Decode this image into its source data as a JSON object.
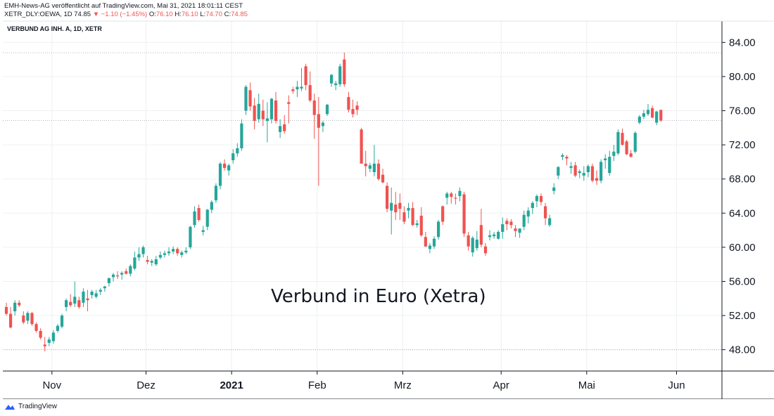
{
  "header": {
    "line1": "EMH-News-AG veröffentlicht auf TradingView.com, Mai 31, 2021 18:01:11 CEST",
    "symbol": "XETR_DLY:OEWA, 1D",
    "last": "74.85",
    "change": "−1.10 (−1.45%)",
    "o_label": "O:",
    "o_value": "76.10",
    "h_label": "H:",
    "h_value": "76.10",
    "l_label": "L:",
    "l_value": "74.70",
    "c_label": "C:",
    "c_value": "74.85"
  },
  "footer": {
    "brand": "TradingView"
  },
  "colors": {
    "up": "#26a69a",
    "down": "#ef5350",
    "grid": "#eef0f3",
    "dots": "#b2b5be"
  },
  "chart_data": {
    "type": "candlestick",
    "title": "VERBUND AG INH. A, 1D, XETR",
    "annotation": "Verbund in Euro (Xetra)",
    "ylim": [
      45.5,
      86.5
    ],
    "y_ticks": [
      "84.00",
      "80.00",
      "76.00",
      "72.00",
      "68.00",
      "64.00",
      "60.00",
      "56.00",
      "52.00",
      "48.00"
    ],
    "x_ticks": [
      {
        "label": "Nov",
        "index": 10,
        "bold": false
      },
      {
        "label": "Dez",
        "index": 32,
        "bold": false
      },
      {
        "label": "2021",
        "index": 52,
        "bold": true
      },
      {
        "label": "Feb",
        "index": 72,
        "bold": false
      },
      {
        "label": "Mrz",
        "index": 92,
        "bold": false
      },
      {
        "label": "Apr",
        "index": 115,
        "bold": false
      },
      {
        "label": "Mai",
        "index": 135,
        "bold": false
      },
      {
        "label": "Jun",
        "index": 156,
        "bold": false
      }
    ],
    "reference_lines": [
      82.8,
      74.85,
      48.0
    ],
    "candles": [
      [
        53.0,
        53.5,
        52.0,
        52.2
      ],
      [
        52.2,
        53.0,
        50.5,
        50.6
      ],
      [
        52.5,
        53.8,
        52.0,
        53.5
      ],
      [
        53.5,
        53.8,
        53.0,
        53.2
      ],
      [
        52.0,
        52.5,
        51.0,
        51.2
      ],
      [
        51.4,
        52.5,
        51.0,
        52.3
      ],
      [
        52.3,
        52.4,
        50.8,
        51.0
      ],
      [
        51.0,
        51.2,
        50.0,
        50.2
      ],
      [
        50.2,
        50.5,
        49.2,
        49.4
      ],
      [
        48.6,
        49.5,
        47.8,
        48.4
      ],
      [
        48.8,
        49.5,
        48.4,
        49.2
      ],
      [
        49.0,
        50.3,
        48.7,
        50.0
      ],
      [
        50.2,
        51.0,
        50.0,
        50.8
      ],
      [
        50.7,
        52.2,
        50.5,
        52.0
      ],
      [
        53.0,
        54.0,
        52.5,
        53.8
      ],
      [
        53.6,
        54.5,
        53.0,
        53.2
      ],
      [
        53.4,
        56.0,
        53.0,
        54.2
      ],
      [
        53.8,
        54.2,
        52.8,
        53.0
      ],
      [
        53.5,
        55.2,
        53.0,
        54.8
      ],
      [
        54.0,
        55.0,
        52.5,
        53.8
      ],
      [
        54.4,
        55.0,
        54.0,
        54.8
      ],
      [
        54.2,
        55.0,
        54.0,
        54.6
      ],
      [
        54.8,
        55.2,
        54.4,
        55.0
      ],
      [
        55.2,
        55.5,
        54.8,
        55.4
      ],
      [
        55.8,
        56.3,
        55.4,
        56.4
      ],
      [
        56.5,
        57.0,
        56.0,
        56.8
      ],
      [
        56.7,
        57.2,
        56.3,
        56.6
      ],
      [
        56.8,
        57.2,
        56.2,
        57.0
      ],
      [
        57.2,
        57.5,
        56.8,
        56.9
      ],
      [
        56.9,
        58.0,
        56.6,
        57.8
      ],
      [
        57.5,
        59.5,
        57.3,
        58.8
      ],
      [
        58.8,
        60.0,
        58.4,
        59.2
      ],
      [
        59.2,
        60.2,
        58.8,
        60.0
      ],
      [
        58.5,
        59.0,
        58.0,
        58.3
      ],
      [
        58.2,
        58.6,
        57.8,
        58.4
      ],
      [
        58.0,
        59.0,
        57.8,
        58.6
      ],
      [
        58.8,
        59.5,
        58.6,
        59.1
      ],
      [
        59.1,
        59.6,
        58.8,
        59.3
      ],
      [
        59.3,
        60.0,
        59.0,
        59.5
      ],
      [
        59.5,
        60.1,
        59.2,
        59.8
      ],
      [
        59.8,
        60.0,
        59.0,
        59.3
      ],
      [
        59.1,
        59.6,
        58.8,
        59.4
      ],
      [
        59.4,
        60.0,
        59.2,
        59.6
      ],
      [
        60.0,
        62.5,
        59.8,
        62.4
      ],
      [
        62.6,
        64.8,
        62.3,
        64.2
      ],
      [
        64.6,
        65.0,
        63.0,
        63.2
      ],
      [
        61.8,
        62.5,
        61.4,
        62.0
      ],
      [
        62.4,
        64.5,
        62.0,
        64.4
      ],
      [
        64.4,
        65.5,
        64.0,
        65.3
      ],
      [
        65.5,
        67.5,
        65.2,
        67.2
      ],
      [
        67.2,
        70.0,
        66.8,
        69.8
      ],
      [
        69.8,
        70.3,
        69.0,
        69.3
      ],
      [
        69.0,
        69.8,
        68.4,
        69.6
      ],
      [
        70.2,
        71.5,
        69.8,
        71.0
      ],
      [
        71.0,
        72.2,
        70.6,
        71.6
      ],
      [
        71.6,
        75.0,
        71.3,
        74.5
      ],
      [
        76.0,
        79.0,
        75.5,
        78.8
      ],
      [
        78.4,
        79.3,
        76.0,
        76.5
      ],
      [
        76.6,
        77.5,
        73.8,
        74.8
      ],
      [
        75.0,
        78.0,
        74.6,
        76.8
      ],
      [
        76.0,
        77.3,
        74.2,
        75.0
      ],
      [
        74.8,
        77.0,
        72.3,
        75.1
      ],
      [
        75.0,
        77.5,
        74.5,
        77.4
      ],
      [
        77.2,
        78.2,
        74.5,
        74.8
      ],
      [
        73.5,
        75.0,
        72.8,
        74.2
      ],
      [
        74.4,
        75.5,
        73.3,
        73.6
      ],
      [
        77.0,
        77.8,
        74.5,
        76.8
      ],
      [
        78.5,
        78.8,
        78.0,
        78.3
      ],
      [
        78.5,
        79.5,
        77.6,
        78.8
      ],
      [
        78.6,
        81.0,
        78.3,
        78.8
      ],
      [
        81.2,
        81.5,
        78.4,
        79.0
      ],
      [
        79.0,
        80.6,
        77.0,
        77.2
      ],
      [
        77.2,
        78.0,
        72.7,
        75.5
      ],
      [
        75.6,
        77.6,
        67.2,
        74.0
      ],
      [
        74.2,
        74.8,
        73.5,
        74.6
      ],
      [
        75.6,
        76.8,
        75.4,
        76.7
      ],
      [
        79.2,
        80.3,
        78.8,
        80.2
      ],
      [
        79.0,
        79.5,
        78.4,
        79.2
      ],
      [
        79.1,
        81.5,
        78.8,
        81.2
      ],
      [
        82.0,
        82.8,
        78.8,
        79.1
      ],
      [
        77.6,
        78.2,
        75.8,
        76.1
      ],
      [
        76.2,
        77.3,
        75.2,
        75.6
      ],
      [
        76.6,
        77.1,
        75.5,
        76.1
      ],
      [
        73.8,
        74.0,
        69.8,
        69.8
      ],
      [
        69.8,
        71.3,
        68.3,
        69.5
      ],
      [
        69.2,
        69.9,
        68.8,
        69.6
      ],
      [
        68.8,
        72.0,
        68.3,
        69.8
      ],
      [
        69.8,
        70.3,
        67.8,
        68.0
      ],
      [
        68.5,
        69.2,
        67.5,
        67.6
      ],
      [
        67.2,
        67.6,
        64.1,
        64.5
      ],
      [
        64.3,
        67.0,
        61.5,
        65.2
      ],
      [
        65.0,
        66.5,
        63.2,
        64.1
      ],
      [
        65.2,
        66.3,
        63.2,
        64.5
      ],
      [
        64.1,
        64.8,
        62.7,
        63.0
      ],
      [
        64.3,
        65.2,
        63.4,
        64.6
      ],
      [
        64.6,
        65.3,
        62.5,
        62.6
      ],
      [
        62.6,
        63.2,
        62.3,
        62.8
      ],
      [
        63.7,
        64.7,
        61.2,
        61.4
      ],
      [
        61.2,
        61.8,
        60.0,
        60.1
      ],
      [
        59.8,
        60.5,
        59.3,
        60.2
      ],
      [
        60.1,
        61.3,
        59.8,
        61.0
      ],
      [
        61.2,
        63.2,
        60.9,
        63.0
      ],
      [
        64.8,
        64.9,
        62.6,
        63.0
      ],
      [
        65.8,
        66.5,
        65.0,
        66.3
      ],
      [
        66.3,
        66.5,
        65.1,
        65.9
      ],
      [
        65.8,
        66.3,
        65.0,
        65.7
      ],
      [
        66.0,
        67.0,
        65.4,
        66.6
      ],
      [
        66.2,
        66.5,
        61.2,
        61.6
      ],
      [
        61.4,
        61.8,
        59.6,
        60.1
      ],
      [
        59.4,
        61.3,
        58.9,
        61.1
      ],
      [
        59.9,
        61.9,
        59.6,
        60.9
      ],
      [
        62.6,
        64.5,
        60.0,
        60.3
      ],
      [
        60.1,
        60.5,
        59.0,
        59.3
      ],
      [
        61.2,
        62.0,
        60.8,
        61.4
      ],
      [
        61.3,
        61.8,
        61.0,
        61.5
      ],
      [
        61.0,
        62.0,
        60.9,
        61.8
      ],
      [
        61.8,
        63.5,
        61.0,
        62.7
      ],
      [
        63.1,
        63.4,
        62.0,
        62.7
      ],
      [
        63.0,
        63.3,
        62.2,
        62.6
      ],
      [
        62.2,
        62.6,
        61.2,
        61.9
      ],
      [
        61.7,
        62.2,
        61.1,
        62.2
      ],
      [
        62.4,
        64.3,
        62.0,
        63.8
      ],
      [
        63.6,
        64.7,
        62.8,
        64.3
      ],
      [
        64.6,
        65.4,
        63.9,
        65.2
      ],
      [
        65.4,
        66.2,
        64.7,
        66.0
      ],
      [
        66.0,
        66.3,
        64.9,
        65.3
      ],
      [
        64.8,
        65.2,
        62.6,
        63.4
      ],
      [
        62.6,
        63.8,
        62.4,
        63.4
      ],
      [
        66.6,
        67.5,
        66.2,
        67.0
      ],
      [
        68.4,
        69.5,
        68.0,
        69.4
      ],
      [
        70.6,
        71.0,
        70.2,
        70.8
      ],
      [
        70.6,
        70.8,
        69.6,
        70.4
      ],
      [
        69.3,
        70.0,
        68.6,
        69.5
      ],
      [
        69.6,
        70.0,
        68.2,
        68.4
      ],
      [
        68.7,
        69.1,
        68.1,
        68.9
      ],
      [
        68.4,
        69.5,
        67.8,
        68.7
      ],
      [
        68.8,
        69.7,
        68.2,
        69.5
      ],
      [
        69.5,
        69.8,
        67.6,
        67.8
      ],
      [
        68.1,
        69.0,
        67.3,
        67.8
      ],
      [
        67.8,
        70.3,
        67.5,
        70.0
      ],
      [
        70.2,
        70.9,
        69.2,
        70.4
      ],
      [
        68.7,
        71.3,
        68.4,
        70.6
      ],
      [
        70.7,
        72.0,
        70.1,
        71.2
      ],
      [
        71.0,
        73.8,
        70.8,
        73.5
      ],
      [
        73.4,
        73.9,
        71.9,
        72.0
      ],
      [
        72.4,
        72.6,
        70.8,
        70.9
      ],
      [
        71.0,
        71.4,
        70.5,
        70.6
      ],
      [
        71.2,
        73.6,
        71.0,
        73.4
      ],
      [
        74.6,
        75.5,
        74.4,
        75.3
      ],
      [
        75.3,
        76.1,
        75.0,
        75.7
      ],
      [
        75.6,
        76.8,
        75.4,
        76.1
      ],
      [
        76.3,
        76.6,
        75.1,
        75.2
      ],
      [
        74.6,
        76.0,
        74.3,
        75.9
      ],
      [
        76.1,
        76.1,
        74.7,
        74.85
      ]
    ]
  }
}
